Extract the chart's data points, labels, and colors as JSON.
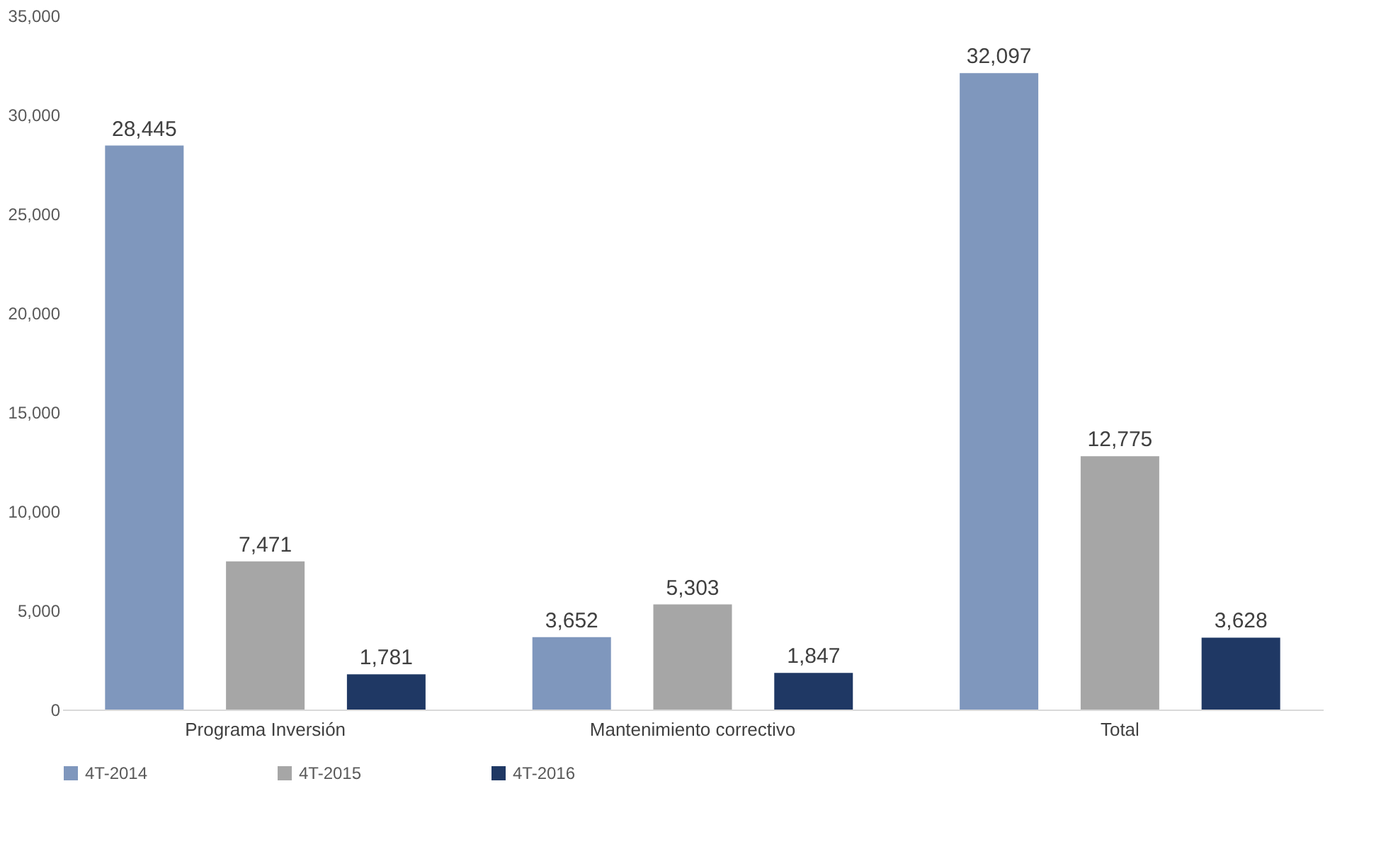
{
  "chart_data": {
    "type": "bar",
    "categories": [
      "Programa Inversión",
      "Mantenimiento correctivo",
      "Total"
    ],
    "series": [
      {
        "name": "4T-2014",
        "color": "#7f97bd",
        "values": [
          28445,
          3652,
          32097
        ],
        "value_labels": [
          "28,445",
          "3,652",
          "32,097"
        ]
      },
      {
        "name": "4T-2015",
        "color": "#a6a6a6",
        "values": [
          7471,
          5303,
          12775
        ],
        "value_labels": [
          "7,471",
          "5,303",
          "12,775"
        ]
      },
      {
        "name": "4T-2016",
        "color": "#1f3864",
        "values": [
          1781,
          1847,
          3628
        ],
        "value_labels": [
          "1,781",
          "1,847",
          "3,628"
        ]
      }
    ],
    "ylim": [
      0,
      35000
    ],
    "yticks": [
      0,
      {
        "value": 5000,
        "label": "5,000"
      },
      {
        "value": 10000,
        "label": "10,000"
      },
      {
        "value": 15000,
        "label": "15,000"
      },
      {
        "value": 20000,
        "label": "20,000"
      },
      {
        "value": 25000,
        "label": "25,000"
      },
      {
        "value": 30000,
        "label": "30,000"
      },
      {
        "value": 35000,
        "label": "35,000"
      }
    ],
    "grid": false,
    "legend": "bottom"
  }
}
